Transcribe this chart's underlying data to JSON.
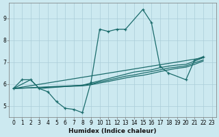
{
  "xlabel": "Humidex (Indice chaleur)",
  "bg_color": "#cce9f0",
  "grid_color": "#aacdd8",
  "line_color": "#1a6b6b",
  "xlim": [
    -0.5,
    23.5
  ],
  "ylim": [
    4.5,
    9.7
  ],
  "yticks": [
    5,
    6,
    7,
    8,
    9
  ],
  "xticks": [
    0,
    1,
    2,
    3,
    4,
    5,
    6,
    7,
    8,
    9,
    10,
    11,
    12,
    13,
    14,
    15,
    16,
    17,
    18,
    19,
    20,
    21,
    22,
    23
  ],
  "line1_x": [
    0,
    1,
    2,
    3,
    4,
    5,
    6,
    7,
    8,
    9,
    10,
    11,
    12,
    13,
    15,
    16,
    17,
    18,
    20,
    21,
    22
  ],
  "line1_y": [
    5.8,
    6.2,
    6.2,
    5.8,
    5.65,
    5.2,
    4.9,
    4.85,
    4.7,
    6.1,
    8.5,
    8.4,
    8.5,
    8.5,
    9.4,
    8.8,
    6.8,
    6.5,
    6.2,
    7.1,
    7.25
  ],
  "line2_x": [
    0,
    2,
    3,
    8,
    9,
    10,
    11,
    12,
    13,
    14,
    15,
    16,
    17,
    18,
    19,
    20,
    21,
    22
  ],
  "line2_y": [
    5.8,
    6.2,
    5.8,
    5.95,
    6.05,
    6.15,
    6.25,
    6.35,
    6.45,
    6.55,
    6.6,
    6.65,
    6.75,
    6.82,
    6.87,
    6.9,
    7.05,
    7.2
  ],
  "line3_x": [
    0,
    22
  ],
  "line3_y": [
    5.8,
    7.2
  ],
  "line4_x": [
    0,
    8,
    9,
    10,
    11,
    12,
    13,
    14,
    15,
    16,
    17,
    18,
    19,
    20,
    21,
    22
  ],
  "line4_y": [
    5.8,
    5.95,
    6.0,
    6.1,
    6.18,
    6.27,
    6.36,
    6.42,
    6.5,
    6.57,
    6.65,
    6.73,
    6.78,
    6.83,
    6.97,
    7.1
  ],
  "line5_x": [
    0,
    8,
    9,
    10,
    11,
    12,
    13,
    14,
    15,
    16,
    17,
    18,
    19,
    20,
    21,
    22
  ],
  "line5_y": [
    5.8,
    5.92,
    5.97,
    6.05,
    6.12,
    6.2,
    6.28,
    6.35,
    6.4,
    6.48,
    6.57,
    6.65,
    6.72,
    6.77,
    6.9,
    7.05
  ]
}
